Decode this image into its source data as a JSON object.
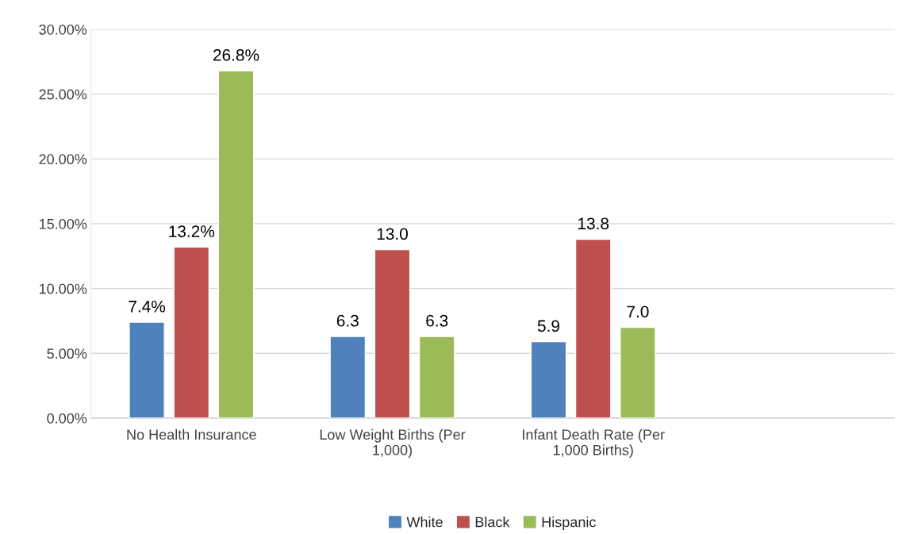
{
  "chart_data": {
    "type": "bar",
    "categories": [
      "No Health Insurance",
      "Low Weight Births (Per 1,000)",
      "Infant Death Rate (Per 1,000 Births)",
      null
    ],
    "series": [
      {
        "name": "White",
        "color": "#4f81bd",
        "values": [
          7.4,
          6.3,
          5.9,
          null
        ],
        "value_labels": [
          "7.4%",
          "6.3",
          "5.9",
          null
        ]
      },
      {
        "name": "Black",
        "color": "#c0504d",
        "values": [
          13.2,
          13.0,
          13.8,
          null
        ],
        "value_labels": [
          "13.2%",
          "13.0",
          "13.8",
          null
        ]
      },
      {
        "name": "Hispanic",
        "color": "#9bbb59",
        "values": [
          26.8,
          6.3,
          7.0,
          null
        ],
        "value_labels": [
          "26.8%",
          "6.3",
          "7.0",
          null
        ]
      }
    ],
    "ylim": [
      0,
      30
    ],
    "yticks": [
      {
        "value": 0,
        "label": "0.00%"
      },
      {
        "value": 5,
        "label": "5.00%"
      },
      {
        "value": 10,
        "label": "10.00%"
      },
      {
        "value": 15,
        "label": "15.00%"
      },
      {
        "value": 20,
        "label": "20.00%"
      },
      {
        "value": 25,
        "label": "25.00%"
      },
      {
        "value": 30,
        "label": "30.00%"
      }
    ],
    "grid": "y",
    "legend": "bottom"
  }
}
